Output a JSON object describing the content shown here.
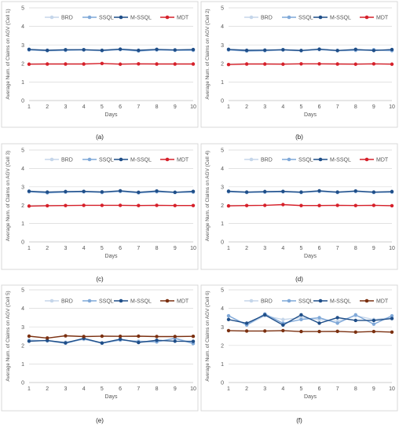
{
  "legend_colors": {
    "BRD": "#c5d6ea",
    "SSQL": "#7fa8d8",
    "M-SSQL": "#1f4e88",
    "MDT": "#d6202a",
    "MDT_brown": "#7b3010"
  },
  "chart_data": [
    {
      "type": "line",
      "panel_label": "(a)",
      "xlabel": "Days",
      "ylabel": "Average Num. of Claims on AGV (Cell 1)",
      "xlim": [
        1,
        10
      ],
      "ylim": [
        0,
        5
      ],
      "grid": true,
      "legend_position": "top",
      "x": [
        1,
        2,
        3,
        4,
        5,
        6,
        7,
        8,
        9,
        10
      ],
      "series": [
        {
          "name": "BRD",
          "color": "#c5d6ea",
          "values": [
            2.72,
            2.68,
            2.7,
            2.72,
            2.68,
            2.74,
            2.66,
            2.72,
            2.7,
            2.7
          ]
        },
        {
          "name": "SSQL",
          "color": "#7fa8d8",
          "values": [
            2.74,
            2.7,
            2.72,
            2.74,
            2.7,
            2.76,
            2.68,
            2.74,
            2.72,
            2.72
          ]
        },
        {
          "name": "M-SSQL",
          "color": "#1f4e88",
          "values": [
            2.76,
            2.71,
            2.74,
            2.74,
            2.71,
            2.77,
            2.71,
            2.76,
            2.73,
            2.75
          ]
        },
        {
          "name": "MDT",
          "color": "#d6202a",
          "values": [
            1.96,
            1.97,
            1.97,
            1.97,
            2.0,
            1.96,
            1.98,
            1.97,
            1.97,
            1.97
          ]
        }
      ]
    },
    {
      "type": "line",
      "panel_label": "(b)",
      "xlabel": "Days",
      "ylabel": "Average Num. of Claims on AGV (Cell 2)",
      "xlim": [
        1,
        10
      ],
      "ylim": [
        0,
        5
      ],
      "grid": true,
      "legend_position": "top",
      "x": [
        1,
        2,
        3,
        4,
        5,
        6,
        7,
        8,
        9,
        10
      ],
      "series": [
        {
          "name": "BRD",
          "color": "#c5d6ea",
          "values": [
            2.72,
            2.66,
            2.68,
            2.72,
            2.68,
            2.74,
            2.68,
            2.7,
            2.72,
            2.68
          ]
        },
        {
          "name": "SSQL",
          "color": "#7fa8d8",
          "values": [
            2.74,
            2.68,
            2.7,
            2.74,
            2.7,
            2.76,
            2.7,
            2.72,
            2.74,
            2.7
          ]
        },
        {
          "name": "M-SSQL",
          "color": "#1f4e88",
          "values": [
            2.76,
            2.71,
            2.72,
            2.74,
            2.7,
            2.77,
            2.7,
            2.76,
            2.7,
            2.75
          ]
        },
        {
          "name": "MDT",
          "color": "#d6202a",
          "values": [
            1.94,
            1.97,
            1.97,
            1.96,
            1.98,
            1.98,
            1.97,
            1.96,
            1.98,
            1.96
          ]
        }
      ]
    },
    {
      "type": "line",
      "panel_label": "(c)",
      "xlabel": "Days",
      "ylabel": "Average Num. of Claims on AGV (Cell 3)",
      "xlim": [
        1,
        10
      ],
      "ylim": [
        0,
        5
      ],
      "grid": true,
      "legend_position": "top",
      "x": [
        1,
        2,
        3,
        4,
        5,
        6,
        7,
        8,
        9,
        10
      ],
      "series": [
        {
          "name": "BRD",
          "color": "#c5d6ea",
          "values": [
            2.72,
            2.66,
            2.7,
            2.72,
            2.68,
            2.74,
            2.66,
            2.72,
            2.68,
            2.7
          ]
        },
        {
          "name": "SSQL",
          "color": "#7fa8d8",
          "values": [
            2.74,
            2.68,
            2.72,
            2.74,
            2.7,
            2.76,
            2.68,
            2.74,
            2.7,
            2.72
          ]
        },
        {
          "name": "M-SSQL",
          "color": "#1f4e88",
          "values": [
            2.76,
            2.71,
            2.74,
            2.75,
            2.72,
            2.78,
            2.7,
            2.77,
            2.7,
            2.75
          ]
        },
        {
          "name": "MDT",
          "color": "#d6202a",
          "values": [
            1.95,
            1.97,
            1.98,
            1.99,
            1.99,
            1.99,
            1.98,
            1.99,
            1.98,
            1.98
          ]
        }
      ]
    },
    {
      "type": "line",
      "panel_label": "(d)",
      "xlabel": "Days",
      "ylabel": "Average Num. of Claims on AGV (Cell 4)",
      "xlim": [
        1,
        10
      ],
      "ylim": [
        0,
        5
      ],
      "grid": true,
      "legend_position": "top",
      "x": [
        1,
        2,
        3,
        4,
        5,
        6,
        7,
        8,
        9,
        10
      ],
      "series": [
        {
          "name": "BRD",
          "color": "#c5d6ea",
          "values": [
            2.72,
            2.68,
            2.7,
            2.72,
            2.68,
            2.74,
            2.68,
            2.74,
            2.68,
            2.7
          ]
        },
        {
          "name": "SSQL",
          "color": "#7fa8d8",
          "values": [
            2.74,
            2.7,
            2.72,
            2.74,
            2.7,
            2.76,
            2.7,
            2.76,
            2.7,
            2.72
          ]
        },
        {
          "name": "M-SSQL",
          "color": "#1f4e88",
          "values": [
            2.76,
            2.71,
            2.74,
            2.75,
            2.71,
            2.78,
            2.71,
            2.77,
            2.71,
            2.74
          ]
        },
        {
          "name": "MDT",
          "color": "#d6202a",
          "values": [
            1.96,
            1.98,
            1.99,
            2.03,
            1.98,
            1.98,
            1.99,
            1.98,
            1.99,
            1.97
          ]
        }
      ]
    },
    {
      "type": "line",
      "panel_label": "(e)",
      "xlabel": "Days",
      "ylabel": "Average Num. of Claims on AGV (Cell 5)",
      "xlim": [
        1,
        10
      ],
      "ylim": [
        0,
        5
      ],
      "grid": true,
      "legend_position": "top",
      "x": [
        1,
        2,
        3,
        4,
        5,
        6,
        7,
        8,
        9,
        10
      ],
      "series": [
        {
          "name": "BRD",
          "color": "#c5d6ea",
          "values": [
            2.3,
            2.24,
            2.18,
            2.32,
            2.14,
            2.28,
            2.24,
            2.18,
            2.4,
            2.14
          ]
        },
        {
          "name": "SSQL",
          "color": "#7fa8d8",
          "values": [
            2.24,
            2.26,
            2.12,
            2.36,
            2.12,
            2.3,
            2.2,
            2.2,
            2.38,
            2.1
          ]
        },
        {
          "name": "M-SSQL",
          "color": "#1f4e88",
          "values": [
            2.23,
            2.27,
            2.14,
            2.38,
            2.13,
            2.34,
            2.16,
            2.28,
            2.23,
            2.22
          ]
        },
        {
          "name": "MDT",
          "color": "#7b3010",
          "values": [
            2.5,
            2.4,
            2.52,
            2.48,
            2.5,
            2.49,
            2.5,
            2.48,
            2.48,
            2.49
          ]
        }
      ]
    },
    {
      "type": "line",
      "panel_label": "(f)",
      "xlabel": "Days",
      "ylabel": "Average Num. of Claims on AGV (Cell 6)",
      "xlim": [
        1,
        10
      ],
      "ylim": [
        0,
        5
      ],
      "grid": true,
      "legend_position": "top",
      "x": [
        1,
        2,
        3,
        4,
        5,
        6,
        7,
        8,
        9,
        10
      ],
      "series": [
        {
          "name": "BRD",
          "color": "#c5d6ea",
          "values": [
            3.6,
            3.1,
            3.6,
            3.4,
            3.5,
            3.4,
            3.3,
            3.6,
            3.4,
            3.5
          ]
        },
        {
          "name": "SSQL",
          "color": "#7fa8d8",
          "values": [
            3.6,
            3.1,
            3.7,
            3.2,
            3.4,
            3.5,
            3.2,
            3.65,
            3.15,
            3.6
          ]
        },
        {
          "name": "M-SSQL",
          "color": "#1f4e88",
          "values": [
            3.4,
            3.2,
            3.65,
            3.1,
            3.65,
            3.2,
            3.5,
            3.35,
            3.35,
            3.45
          ]
        },
        {
          "name": "MDT",
          "color": "#7b3010",
          "values": [
            2.8,
            2.78,
            2.78,
            2.8,
            2.75,
            2.75,
            2.76,
            2.72,
            2.75,
            2.72
          ]
        }
      ]
    }
  ]
}
